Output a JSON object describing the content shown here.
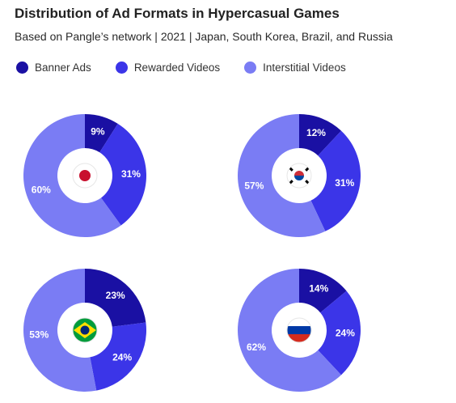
{
  "header": {
    "title": "Distribution of Ad Formats in Hypercasual Games",
    "subtitle": "Based on Pangle’s network | 2021 | Japan, South Korea, Brazil, and Russia"
  },
  "legend": [
    {
      "label": "Banner Ads",
      "color": "#1a10a3"
    },
    {
      "label": "Rewarded Videos",
      "color": "#3b35e8"
    },
    {
      "label": "Interstitial Videos",
      "color": "#7a7cf4"
    }
  ],
  "chart_data": [
    {
      "type": "pie",
      "country_flag": "Japan",
      "categories": [
        "Banner Ads",
        "Rewarded Videos",
        "Interstitial Videos"
      ],
      "values": [
        9,
        31,
        60
      ],
      "labels": [
        "9%",
        "31%",
        "60%"
      ]
    },
    {
      "type": "pie",
      "country_flag": "South Korea",
      "categories": [
        "Banner Ads",
        "Rewarded Videos",
        "Interstitial Videos"
      ],
      "values": [
        12,
        31,
        57
      ],
      "labels": [
        "12%",
        "31%",
        "57%"
      ]
    },
    {
      "type": "pie",
      "country_flag": "Brazil",
      "categories": [
        "Banner Ads",
        "Rewarded Videos",
        "Interstitial Videos"
      ],
      "values": [
        23,
        24,
        53
      ],
      "labels": [
        "23%",
        "24%",
        "53%"
      ]
    },
    {
      "type": "pie",
      "country_flag": "Russia",
      "categories": [
        "Banner Ads",
        "Rewarded Videos",
        "Interstitial Videos"
      ],
      "values": [
        14,
        24,
        62
      ],
      "labels": [
        "14%",
        "24%",
        "62%"
      ]
    }
  ]
}
